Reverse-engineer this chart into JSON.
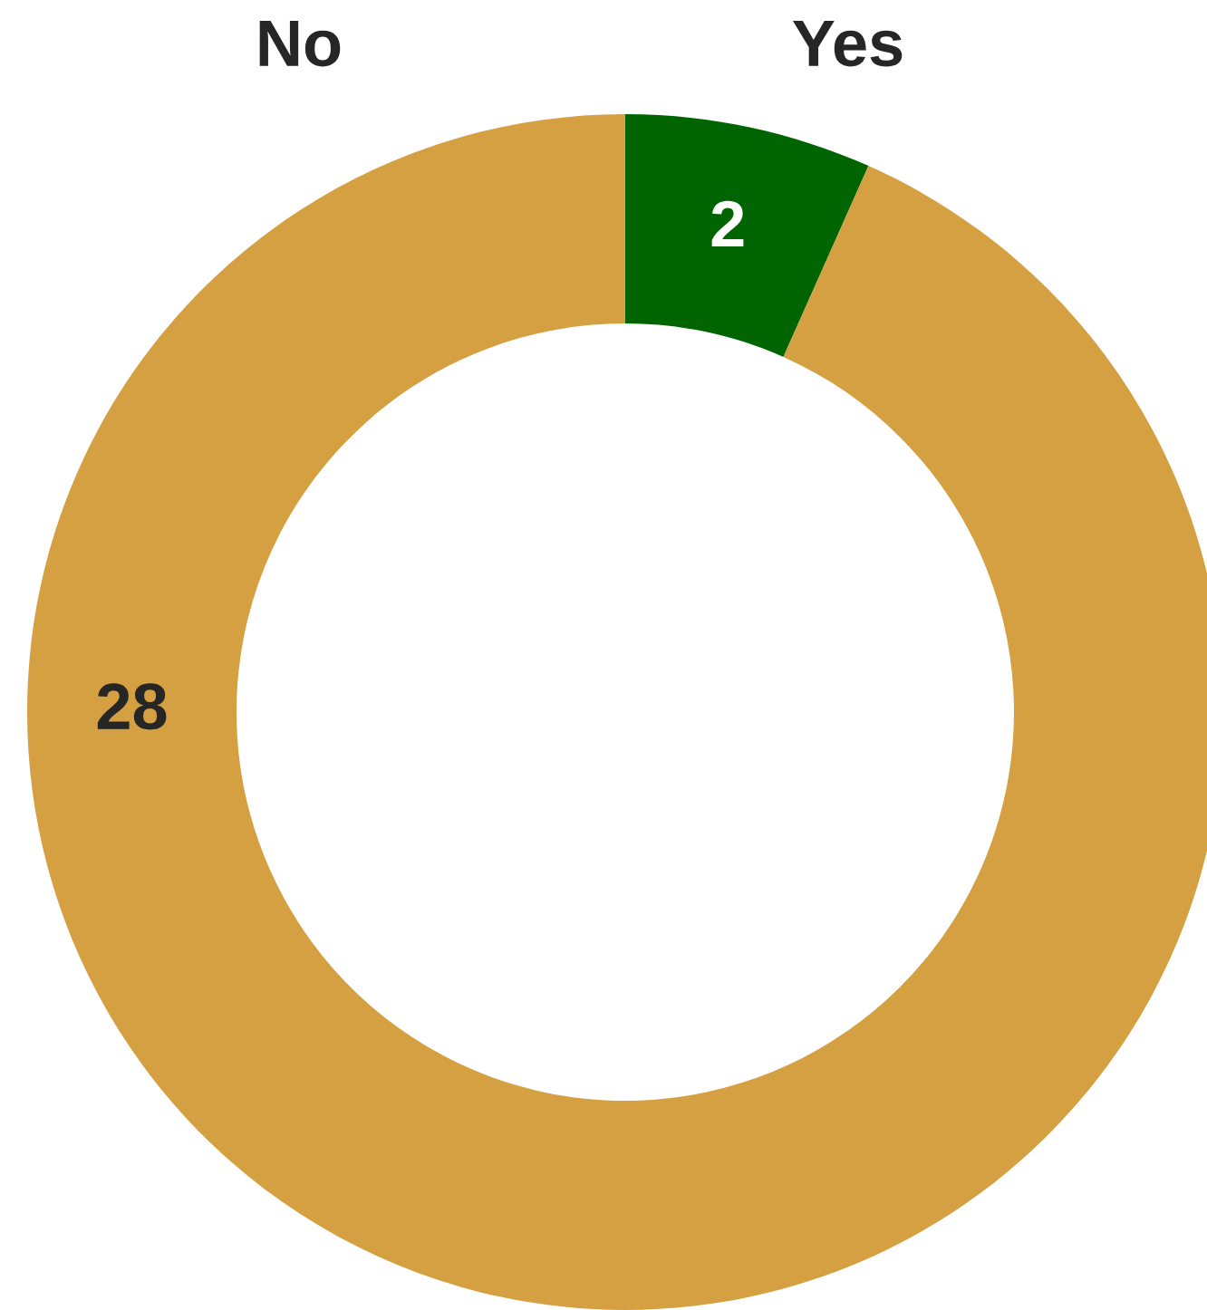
{
  "chart_data": {
    "type": "donut",
    "categories": [
      "Yes",
      "No"
    ],
    "values": [
      2,
      28
    ],
    "colors": [
      "#006400",
      "#d4a042"
    ],
    "data_labels": true
  }
}
